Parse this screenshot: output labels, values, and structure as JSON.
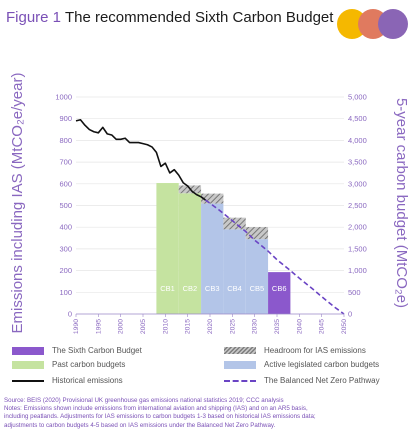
{
  "title": {
    "figure": "Figure 1",
    "text": "The recommended Sixth Carbon Budget"
  },
  "logo": {
    "name": "ccc-logo",
    "colors": [
      "#f5b800",
      "#e07a5f",
      "#8a65b5"
    ]
  },
  "chart_data": {
    "type": "bar+line",
    "ylabel_left": "Emissions including IAS (MtCO₂e/year)",
    "ylabel_right": "5-year carbon budget (MtCO₂e)",
    "xlim": [
      1990,
      2050
    ],
    "ylim_left": [
      0,
      1000
    ],
    "ylim_right": [
      0,
      5000
    ],
    "x_ticks": [
      "1990",
      "1995",
      "2000",
      "2005",
      "2010",
      "2015",
      "2020",
      "2025",
      "2030",
      "2035",
      "2040",
      "2045",
      "2050"
    ],
    "y_ticks_left": [
      "0",
      "100",
      "200",
      "300",
      "400",
      "500",
      "600",
      "700",
      "800",
      "900",
      "1000"
    ],
    "y_ticks_right": [
      "0",
      "500",
      "1,000",
      "1,500",
      "2,000",
      "2,500",
      "3,000",
      "3,500",
      "4,000",
      "4,500",
      "5,000"
    ],
    "budgets": [
      {
        "label": "CB1",
        "start": 2008,
        "end": 2012,
        "value": 3018,
        "headroom": 0,
        "kind": "past"
      },
      {
        "label": "CB2",
        "start": 2013,
        "end": 2017,
        "value": 2782,
        "headroom": 180,
        "kind": "past"
      },
      {
        "label": "CB3",
        "start": 2018,
        "end": 2022,
        "value": 2544,
        "headroom": 230,
        "kind": "active"
      },
      {
        "label": "CB4",
        "start": 2023,
        "end": 2027,
        "value": 1950,
        "headroom": 270,
        "kind": "active"
      },
      {
        "label": "CB5",
        "start": 2028,
        "end": 2032,
        "value": 1725,
        "headroom": 280,
        "kind": "active"
      },
      {
        "label": "CB6",
        "start": 2033,
        "end": 2037,
        "value": 965,
        "headroom": 0,
        "kind": "sixth"
      }
    ],
    "historical": {
      "x": [
        1990,
        1991,
        1992,
        1993,
        1994,
        1995,
        1996,
        1997,
        1998,
        1999,
        2000,
        2001,
        2002,
        2003,
        2004,
        2005,
        2006,
        2007,
        2008,
        2009,
        2010,
        2011,
        2012,
        2013,
        2014,
        2015,
        2016,
        2017,
        2018,
        2019
      ],
      "y": [
        890,
        895,
        870,
        850,
        840,
        835,
        860,
        830,
        825,
        805,
        805,
        810,
        790,
        790,
        790,
        785,
        780,
        770,
        745,
        680,
        695,
        650,
        665,
        640,
        605,
        590,
        565,
        550,
        540,
        525
      ]
    },
    "pathway": {
      "x": [
        2019,
        2022,
        2025,
        2028,
        2030,
        2033,
        2035,
        2038,
        2040,
        2043,
        2045,
        2048,
        2050
      ],
      "y": [
        525,
        480,
        430,
        380,
        340,
        290,
        250,
        200,
        165,
        115,
        80,
        30,
        0
      ]
    },
    "colors": {
      "past": "#c5e3a0",
      "active": "#b3c5e8",
      "sixth": "#8b58cc",
      "historical": "#111111",
      "pathway": "#6a44c4"
    }
  },
  "legend": {
    "sixth": "The Sixth Carbon Budget",
    "headroom": "Headroom for IAS emissions",
    "past": "Past carbon budgets",
    "active": "Active legislated carbon budgets",
    "historical": "Historical emissions",
    "pathway": "The Balanced Net Zero Pathway"
  },
  "notes": [
    "Source: BEIS (2020) Provisional UK greenhouse gas emissions national statistics 2019; CCC analysis",
    "Notes: Emissions shown include emissions from international aviation and shipping (IAS) and on an AR5 basis,",
    "including peatlands. Adjustments for IAS emissions to carbon budgets 1-3 based on historical IAS emissions data;",
    "adjustments to carbon budgets 4-5 based on IAS emissions under the Balanced Net Zero Pathway."
  ]
}
